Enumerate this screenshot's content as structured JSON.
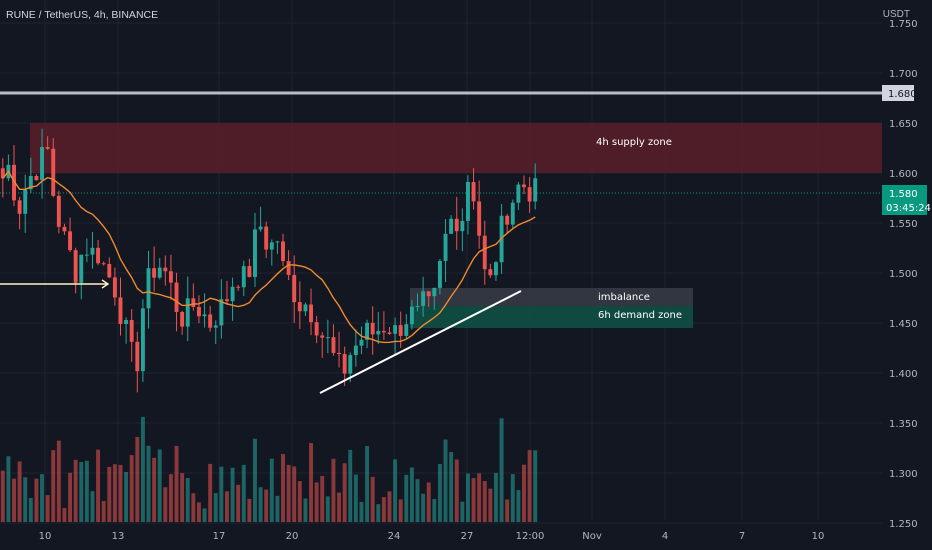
{
  "header": {
    "title": "RUNE / TetherUS, 4h, BINANCE",
    "currency": "USDT"
  },
  "colors": {
    "background": "#131722",
    "up": "#26a69a",
    "down": "#ef5350",
    "ma": "#f0892e",
    "supply": "#5a1e28",
    "imbalance": "#363a45",
    "demand": "#0f4f43",
    "price_badge": "#089981"
  },
  "chart_data": {
    "type": "candlestick",
    "symbol": "RUNE / TetherUS",
    "interval": "4h",
    "exchange": "BINANCE",
    "y_ticks": [
      "1.750",
      "1.700",
      "1.650",
      "1.600",
      "1.550",
      "1.500",
      "1.450",
      "1.400",
      "1.350",
      "1.300",
      "1.250"
    ],
    "x_ticks": [
      "10",
      "13",
      "17",
      "20",
      "24",
      "27",
      "12:00",
      "Nov",
      "4",
      "7",
      "10"
    ],
    "ylim": [
      1.22,
      1.75
    ],
    "last_price": {
      "value": "1.580",
      "countdown": "03:45:24"
    },
    "horizontal_level": {
      "value": "1.680"
    },
    "zones": [
      {
        "label": "4h supply zone",
        "from": 1.6,
        "to": 1.65
      },
      {
        "label": "imbalance",
        "from": 1.467,
        "to": 1.485
      },
      {
        "label": "6h demand zone",
        "from": 1.445,
        "to": 1.467
      }
    ],
    "trendline": {
      "from": {
        "x": "Oct 21",
        "y": 1.38
      },
      "to": {
        "x": "Oct 28",
        "y": 1.482
      }
    },
    "close_path": [
      1.595,
      1.61,
      1.56,
      1.585,
      1.6,
      1.61,
      1.625,
      1.57,
      1.54,
      1.52,
      1.5,
      1.53,
      1.52,
      1.52,
      1.5,
      1.49,
      1.46,
      1.43,
      1.4,
      1.47,
      1.5,
      1.51,
      1.5,
      1.48,
      1.455,
      1.46,
      1.47,
      1.46,
      1.45,
      1.46,
      1.47,
      1.49,
      1.5,
      1.49,
      1.53,
      1.55,
      1.52,
      1.54,
      1.5,
      1.49,
      1.47,
      1.47,
      1.46,
      1.44,
      1.43,
      1.41,
      1.4,
      1.42,
      1.43,
      1.44,
      1.44,
      1.445,
      1.45,
      1.44,
      1.45,
      1.46,
      1.455,
      1.47,
      1.46,
      1.5,
      1.54,
      1.56,
      1.55,
      1.6,
      1.57,
      1.5,
      1.49,
      1.53,
      1.56,
      1.575,
      1.59,
      1.585,
      1.58
    ]
  }
}
